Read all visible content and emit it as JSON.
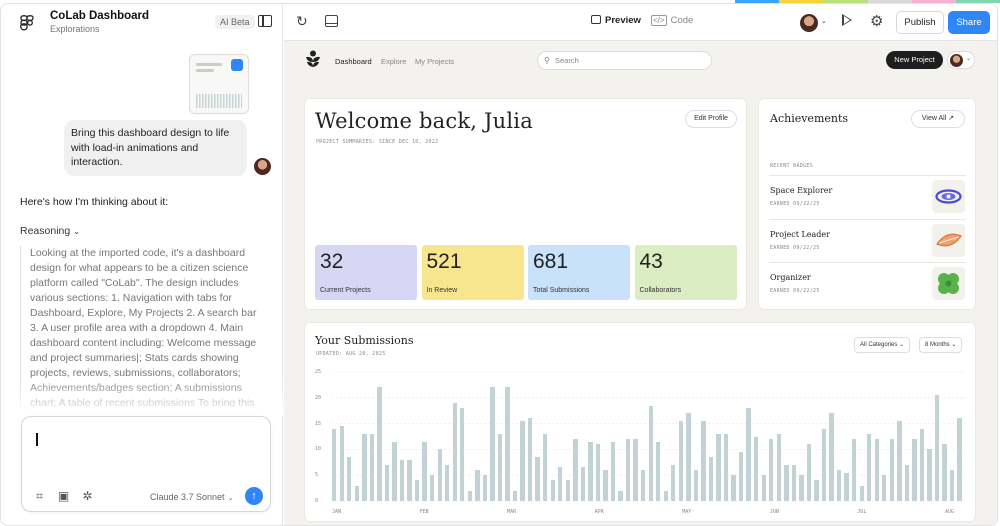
{
  "app": {
    "project_title": "CoLab Dashboard",
    "project_subtitle": "Explorations",
    "ai_beta": "AI Beta"
  },
  "topstrip_colors": [
    "#3ba3ff",
    "#f7d23c",
    "#b9e37a",
    "#d9d9d9",
    "#f5b2d0",
    "#7fd6b0"
  ],
  "chat": {
    "user_message": "Bring this dashboard design to life with load-in animations and interaction.",
    "assistant_intro": "Here's how I'm thinking about it:",
    "reasoning_label": "Reasoning",
    "reasoning_text": "Looking at the imported code, it's a dashboard design for what appears to be a citizen science platform called \"CoLab\". The design includes various sections: 1. Navigation with tabs for Dashboard, Explore, My Projects 2. A search bar 3. A user profile area with a dropdown 4. Main dashboard content including: Welcome message and project summaries|; Stats cards showing projects, reviews, submissions, collaborators; Achievements/badges section; A submissions chart; A table of recent submissions To bring this",
    "model_label": "Claude 3.7 Sonnet"
  },
  "toolbar": {
    "preview_label": "Preview",
    "code_label": "Code",
    "code_icon": "</>",
    "publish_label": "Publish",
    "share_label": "Share"
  },
  "dashboard": {
    "nav": [
      "Dashboard",
      "Explore",
      "My Projects"
    ],
    "search_placeholder": "Search",
    "new_project": "New Project",
    "welcome_title": "Welcome back, Julia",
    "welcome_sub": "PROJECT SUMMARIES: SINCE DEC 10, 2022",
    "edit_profile": "Edit Profile",
    "stats": [
      {
        "value": "32",
        "label": "Current Projects",
        "color": "#d8d6f5"
      },
      {
        "value": "521",
        "label": "In Review",
        "color": "#f7e68e"
      },
      {
        "value": "681",
        "label": "Total Submissions",
        "color": "#c9e1fa"
      },
      {
        "value": "43",
        "label": "Collaborators",
        "color": "#dbedc2"
      }
    ],
    "achievements_title": "Achievements",
    "view_all": "View All",
    "view_all_icon": "↗",
    "recent_badges": "RECENT BADGES",
    "badges": [
      {
        "name": "Space Explorer",
        "date": "EARNED 09/22/25",
        "icon": "galaxy-badge-icon"
      },
      {
        "name": "Project Leader",
        "date": "EARNED 09/22/25",
        "icon": "leaf-badge-icon"
      },
      {
        "name": "Organizer",
        "date": "EARNED 09/22/25",
        "icon": "clover-badge-icon"
      }
    ],
    "subs_title": "Your Submissions",
    "subs_updated": "UPDATED: AUG 20, 2025",
    "filter_category": "All Categories",
    "filter_range": "8 Months"
  },
  "chart_data": {
    "type": "bar",
    "title": "Your Submissions",
    "ylim": [
      0,
      25
    ],
    "yticks": [
      "0",
      "5",
      "10",
      "15",
      "20",
      "25"
    ],
    "xticks": [
      "JAN",
      "FEB",
      "MAR",
      "APR",
      "MAY",
      "JUN",
      "JUL",
      "AUG"
    ],
    "grid": true,
    "values": [
      14,
      14.5,
      8.5,
      3,
      13,
      13,
      22,
      7,
      11.5,
      8,
      8,
      4,
      11.5,
      5,
      10,
      7,
      19,
      18,
      2,
      6,
      5,
      22,
      13,
      22,
      2,
      15.5,
      16,
      8.5,
      13,
      4,
      6.5,
      4,
      12,
      6.5,
      11.5,
      11,
      6,
      11.5,
      2,
      12,
      12,
      6,
      18.5,
      11.5,
      2,
      7,
      15.5,
      17,
      6,
      15.5,
      8.5,
      13,
      13,
      5,
      9.5,
      18,
      12.5,
      5,
      12,
      13,
      7,
      7,
      5,
      11,
      4,
      14,
      17,
      6,
      5.5,
      12,
      3,
      13,
      12,
      5,
      12,
      15.5,
      7,
      12,
      14,
      10,
      20.5,
      11,
      6,
      16
    ]
  }
}
